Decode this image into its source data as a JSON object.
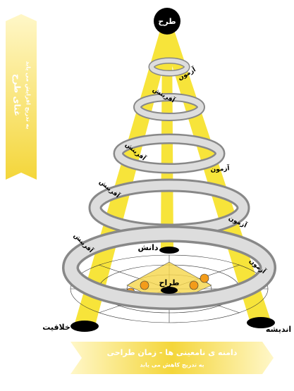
{
  "top_node": "طرح",
  "vertical_banner": {
    "title": "غنای طرح",
    "subtitle": "به تدریج افزایش می یابد"
  },
  "bottom_banner": {
    "title": "دامنه ی نامعینی ها - زمان طراحی",
    "subtitle": "به تدریج کاهش می یابد"
  },
  "nodes": {
    "knowledge": "دانش",
    "designer": "طراح",
    "creativity": "خلاقیت",
    "thought": "اندیشه"
  },
  "spiral_labels": {
    "test": [
      "آزمون",
      "آزمون",
      "آزمون",
      "آزمون"
    ],
    "creation": [
      "آفرینش",
      "آفرینش",
      "آفرینش",
      "آفرینش"
    ]
  }
}
